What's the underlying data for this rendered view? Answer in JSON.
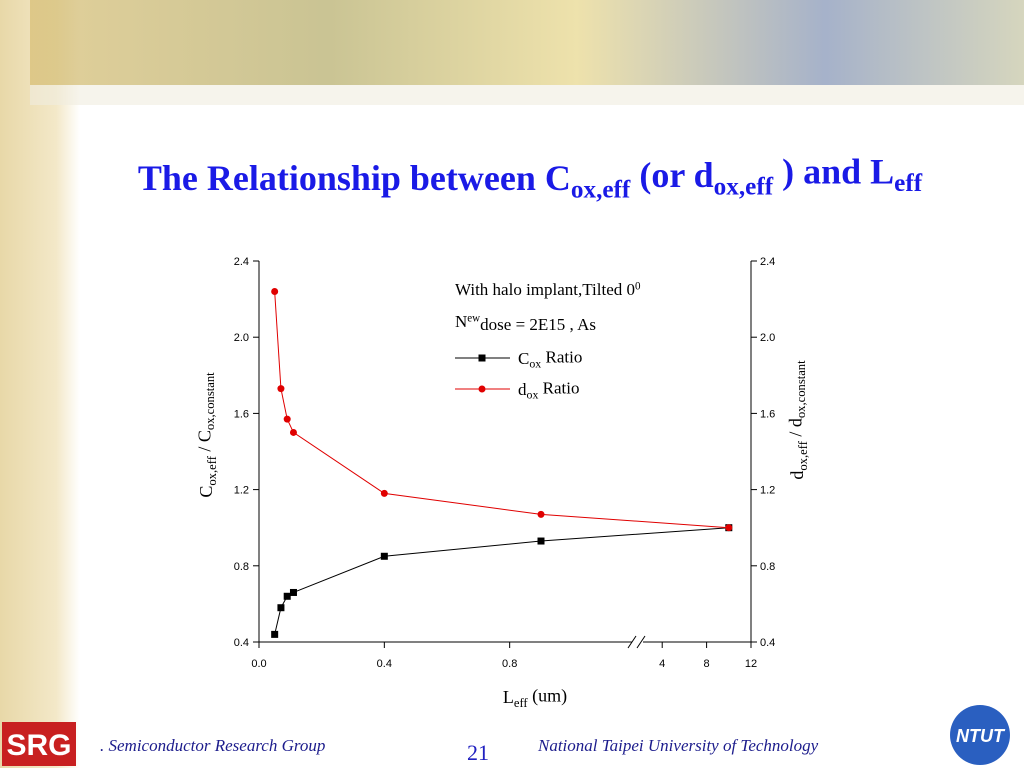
{
  "title": [
    "The Relationship between C",
    "ox,eff",
    " (or d",
    "ox,eff",
    " ) and L",
    "eff"
  ],
  "chart_data": {
    "type": "line",
    "x": [
      0.05,
      0.07,
      0.09,
      0.11,
      0.4,
      0.9,
      10
    ],
    "series": [
      {
        "name": [
          "C",
          "ox",
          " Ratio"
        ],
        "color": "#000000",
        "marker": "square",
        "values": [
          0.44,
          0.58,
          0.64,
          0.66,
          0.85,
          0.93,
          1.0
        ]
      },
      {
        "name": [
          "d",
          "ox",
          "  Ratio"
        ],
        "color": "#e00000",
        "marker": "circle",
        "axis": "y2",
        "values": [
          2.24,
          1.73,
          1.57,
          1.5,
          1.18,
          1.07,
          1.0
        ]
      }
    ],
    "xlim": [
      0,
      12
    ],
    "xbreak": [
      1.2,
      2
    ],
    "xticks": [
      {
        "value": 0,
        "label": "0.0"
      },
      0.4,
      0.8,
      4,
      8,
      12
    ],
    "ylim": [
      0.4,
      2.4
    ],
    "yticks": [
      0.4,
      0.8,
      1.2,
      1.6,
      {
        "value": 2,
        "label": "2.0"
      },
      2.4
    ],
    "y2lim": [
      0.4,
      2.4
    ],
    "y2ticks": [
      0.4,
      0.8,
      1.2,
      1.6,
      {
        "value": 2,
        "label": "2.0"
      },
      2.4
    ],
    "xlabel": [
      "L",
      "eff",
      " (um)"
    ],
    "ylabel": [
      "C",
      "ox,eff",
      " / C",
      "ox,constant"
    ],
    "y2label": [
      "d",
      "ox,eff",
      " / d",
      "ox,constant"
    ],
    "annotations": [
      [
        "With halo implant,Tilted 0",
        "0"
      ],
      [
        "N",
        "ew",
        "dose = 2E15 , As"
      ]
    ]
  },
  "footer": {
    "logo": "SRG",
    "group": ". Semiconductor Research Group",
    "page": "21",
    "university": "National Taipei University of  Technology",
    "logo2": "NTUT"
  }
}
